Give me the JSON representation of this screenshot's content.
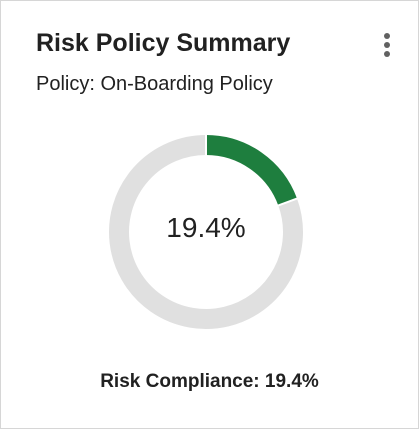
{
  "card": {
    "title": "Risk Policy Summary",
    "subtitle": "Policy: On-Boarding Policy",
    "menu_icon": "more-vertical-icon"
  },
  "chart_data": {
    "type": "pie",
    "subtype": "donut",
    "center_label": "19.4%",
    "slices": [
      {
        "value": 19.4,
        "color": "#1e7e3e"
      },
      {
        "value": 80.6,
        "color": "#e0e0e0"
      }
    ]
  },
  "footer": {
    "label": "Risk Compliance: 19.4%"
  },
  "colors": {
    "compliant": "#1e7e3e",
    "remaining": "#e0e0e0",
    "text": "#212121",
    "border": "#d6d6d6"
  }
}
